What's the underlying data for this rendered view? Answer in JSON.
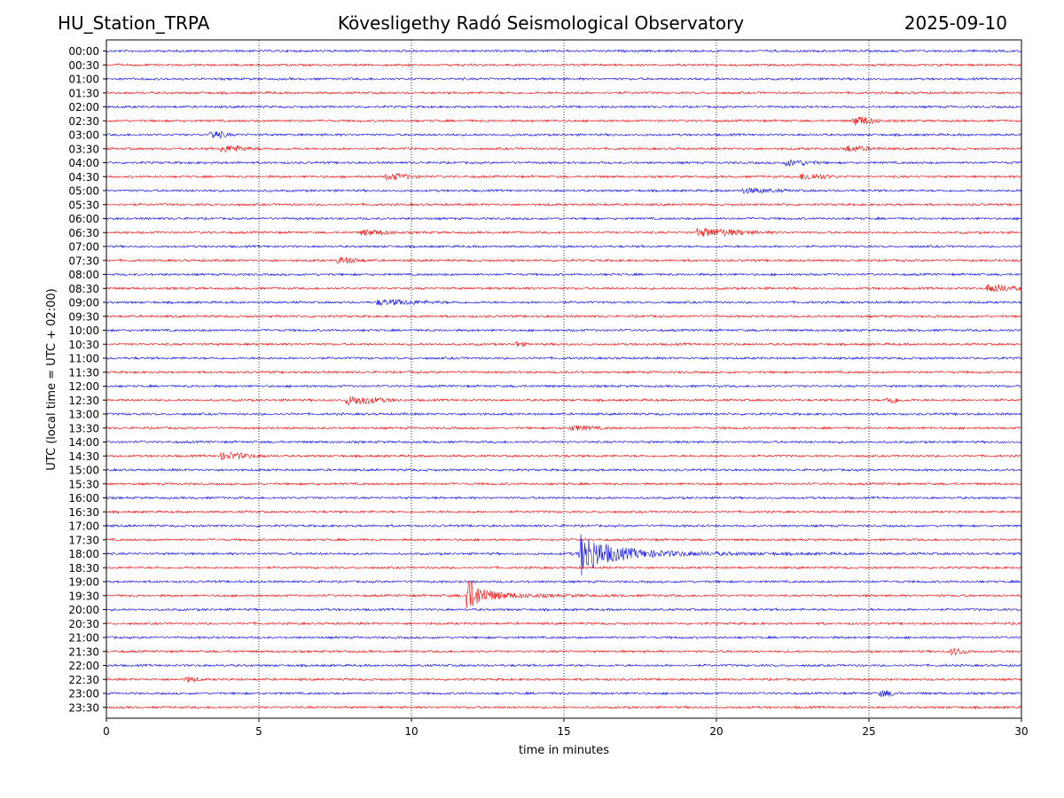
{
  "header": {
    "station": "HU_Station_TRPA",
    "observatory": "Kövesligethy Radó Seismological Observatory",
    "date": "2025-09-10"
  },
  "chart_data": {
    "type": "line",
    "title": "Kövesligethy Radó Seismological Observatory",
    "xlabel": "time in minutes",
    "ylabel": "UTC (local time = UTC + 02:00)",
    "xlim": [
      0,
      30
    ],
    "x_ticks": [
      "0",
      "5",
      "10",
      "15",
      "20",
      "25",
      "30"
    ],
    "vertical_grid_at": [
      5,
      10,
      15,
      20,
      25
    ],
    "grid": "dotted vertical lines at each 5 minutes",
    "legend": "none",
    "trace_colors": [
      "#0000ff",
      "#ff0000"
    ],
    "rows": [
      "00:00",
      "00:30",
      "01:00",
      "01:30",
      "02:00",
      "02:30",
      "03:00",
      "03:30",
      "04:00",
      "04:30",
      "05:00",
      "05:30",
      "06:00",
      "06:30",
      "07:00",
      "07:30",
      "08:00",
      "08:30",
      "09:00",
      "09:30",
      "10:00",
      "10:30",
      "11:00",
      "11:30",
      "12:00",
      "12:30",
      "13:00",
      "13:30",
      "14:00",
      "14:30",
      "15:00",
      "15:30",
      "16:00",
      "16:30",
      "17:00",
      "17:30",
      "18:00",
      "18:30",
      "19:00",
      "19:30",
      "20:00",
      "20:30",
      "21:00",
      "21:30",
      "22:00",
      "22:30",
      "23:00",
      "23:30"
    ],
    "notable_events": [
      {
        "row": "02:30",
        "minute": 24.6,
        "amplitude": 2.0,
        "duration": 1.2
      },
      {
        "row": "03:00",
        "minute": 3.5,
        "amplitude": 1.8,
        "duration": 0.8
      },
      {
        "row": "03:30",
        "minute": 3.9,
        "amplitude": 1.5,
        "duration": 1.5
      },
      {
        "row": "03:30",
        "minute": 24.3,
        "amplitude": 1.3,
        "duration": 1.5
      },
      {
        "row": "04:00",
        "minute": 22.4,
        "amplitude": 1.3,
        "duration": 1.5
      },
      {
        "row": "04:30",
        "minute": 9.3,
        "amplitude": 1.3,
        "duration": 1.5
      },
      {
        "row": "04:30",
        "minute": 22.9,
        "amplitude": 1.4,
        "duration": 1.5
      },
      {
        "row": "05:00",
        "minute": 21.0,
        "amplitude": 1.0,
        "duration": 2.0
      },
      {
        "row": "06:30",
        "minute": 8.5,
        "amplitude": 1.2,
        "duration": 1.5
      },
      {
        "row": "06:30",
        "minute": 19.5,
        "amplitude": 1.8,
        "duration": 3.0
      },
      {
        "row": "07:30",
        "minute": 7.7,
        "amplitude": 1.3,
        "duration": 1.2
      },
      {
        "row": "08:30",
        "minute": 29.0,
        "amplitude": 1.7,
        "duration": 1.6
      },
      {
        "row": "09:00",
        "minute": 9.0,
        "amplitude": 1.1,
        "duration": 3.0
      },
      {
        "row": "10:30",
        "minute": 13.5,
        "amplitude": 1.2,
        "duration": 0.4
      },
      {
        "row": "12:30",
        "minute": 8.0,
        "amplitude": 2.0,
        "duration": 2.0
      },
      {
        "row": "12:30",
        "minute": 25.7,
        "amplitude": 1.6,
        "duration": 0.6
      },
      {
        "row": "13:30",
        "minute": 15.3,
        "amplitude": 1.0,
        "duration": 1.6
      },
      {
        "row": "14:30",
        "minute": 3.9,
        "amplitude": 1.5,
        "duration": 1.8
      },
      {
        "row": "18:00",
        "minute": 15.5,
        "amplitude": 10.0,
        "duration": 3.0
      },
      {
        "row": "19:30",
        "minute": 11.8,
        "amplitude": 8.5,
        "duration": 1.5
      },
      {
        "row": "21:30",
        "minute": 27.8,
        "amplitude": 1.5,
        "duration": 0.8
      },
      {
        "row": "22:30",
        "minute": 2.7,
        "amplitude": 1.2,
        "duration": 0.6
      },
      {
        "row": "23:00",
        "minute": 25.5,
        "amplitude": 1.4,
        "duration": 0.7
      }
    ]
  }
}
